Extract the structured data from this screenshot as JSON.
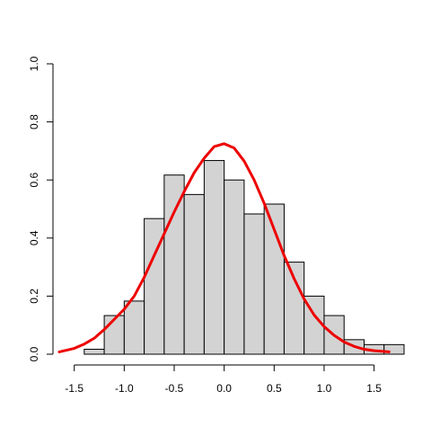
{
  "chart_data": {
    "type": "histogram",
    "title": "",
    "xlabel": "",
    "ylabel": "",
    "xlim": [
      -1.65,
      1.8
    ],
    "ylim": [
      0,
      1.0
    ],
    "x_ticks": [
      -1.5,
      -1.0,
      -0.5,
      0.0,
      0.5,
      1.0,
      1.5
    ],
    "x_tick_labels": [
      "-1.5",
      "-1.0",
      "-0.5",
      "0.0",
      "0.5",
      "1.0",
      "1.5"
    ],
    "y_ticks": [
      0.0,
      0.2,
      0.4,
      0.6,
      0.8,
      1.0
    ],
    "y_tick_labels": [
      "0.0",
      "0.2",
      "0.4",
      "0.6",
      "0.8",
      "1.0"
    ],
    "bin_edges": [
      -1.4,
      -1.2,
      -1.0,
      -0.8,
      -0.6,
      -0.4,
      -0.2,
      0.0,
      0.2,
      0.4,
      0.6,
      0.8,
      1.0,
      1.2,
      1.4,
      1.6,
      1.8
    ],
    "bar_heights": [
      0.017,
      0.133,
      0.183,
      0.467,
      0.617,
      0.55,
      0.667,
      0.6,
      0.483,
      0.517,
      0.317,
      0.2,
      0.133,
      0.05,
      0.033,
      0.033
    ],
    "density_curve": {
      "x": [
        -1.65,
        -1.5,
        -1.4,
        -1.3,
        -1.2,
        -1.1,
        -1.0,
        -0.9,
        -0.8,
        -0.7,
        -0.6,
        -0.5,
        -0.4,
        -0.3,
        -0.2,
        -0.1,
        0.0,
        0.1,
        0.2,
        0.3,
        0.4,
        0.5,
        0.6,
        0.7,
        0.8,
        0.9,
        1.0,
        1.1,
        1.2,
        1.3,
        1.4,
        1.5,
        1.65
      ],
      "y": [
        0.008,
        0.02,
        0.035,
        0.055,
        0.085,
        0.12,
        0.155,
        0.2,
        0.265,
        0.34,
        0.415,
        0.49,
        0.56,
        0.625,
        0.675,
        0.715,
        0.725,
        0.71,
        0.665,
        0.6,
        0.52,
        0.43,
        0.34,
        0.26,
        0.19,
        0.135,
        0.095,
        0.065,
        0.042,
        0.027,
        0.017,
        0.012,
        0.008
      ]
    },
    "colors": {
      "bar_fill": "#d3d3d3",
      "bar_stroke": "#000000",
      "curve": "#ee0000",
      "axis": "#000000"
    },
    "grid": false,
    "legend": "none"
  }
}
